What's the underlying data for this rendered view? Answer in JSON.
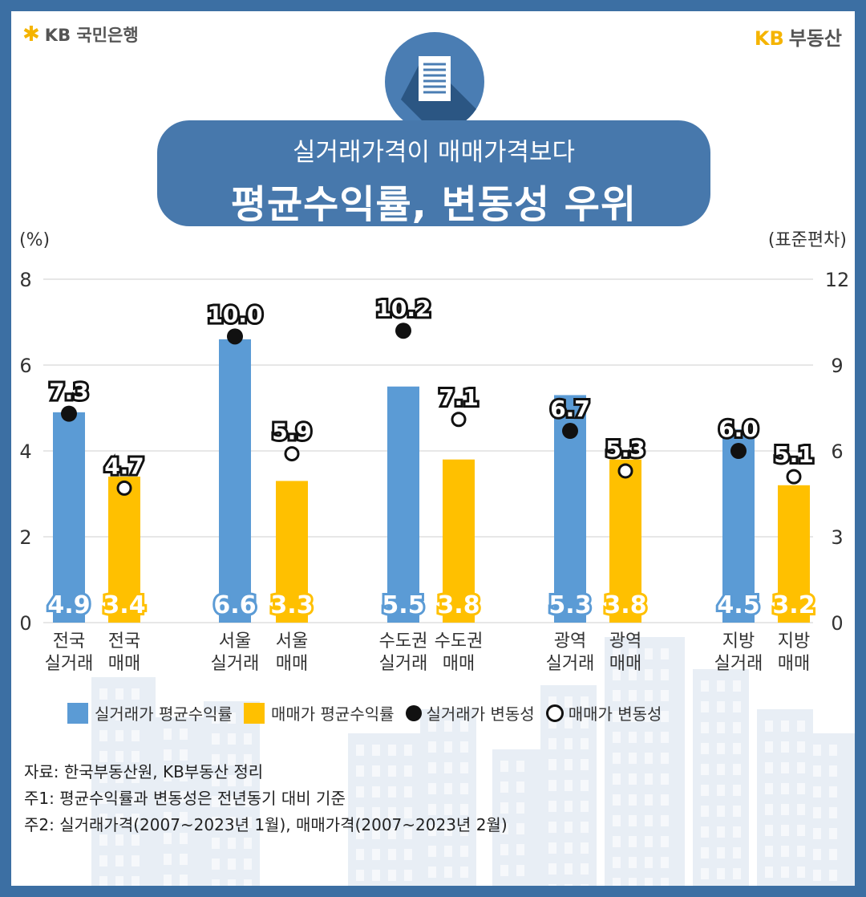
{
  "branding": {
    "left_logo": "KB 국민은행",
    "right_logo_kb": "KB",
    "right_logo_text": "부동산"
  },
  "icons": {
    "document": "document-icon",
    "star": "kb-star-icon"
  },
  "title": {
    "subtitle": "실거래가격이 매매가격보다",
    "main": "평균수익률, 변동성 우위"
  },
  "legend": {
    "blue": "실거래가 평균수익률",
    "yellow": "매매가 평균수익률",
    "black": "실거래가 변동성",
    "white": "매매가 변동성"
  },
  "notes": {
    "source": "자료: 한국부동산원, KB부동산 정리",
    "note1": "주1: 평균수익률과 변동성은 전년동기 대비 기준",
    "note2": "주2: 실거래가격(2007~2023년 1월), 매매가격(2007~2023년 2월)"
  },
  "colors": {
    "blue": "#5b9bd5",
    "yellow": "#ffc000",
    "title_bg": "#4778ac",
    "frame": "#3c6fa3"
  },
  "chart_data": {
    "type": "bar",
    "left_axis_unit": "(%)",
    "right_axis_unit": "(표준편차)",
    "left_ylim": [
      0,
      8
    ],
    "left_ticks": [
      0,
      2,
      4,
      6,
      8
    ],
    "right_ylim": [
      0,
      12
    ],
    "right_ticks": [
      0,
      3,
      6,
      9,
      12
    ],
    "grid": true,
    "legend_position": "bottom",
    "groups": [
      {
        "real_label": [
          "전국",
          "실거래"
        ],
        "sale_label": [
          "전국",
          "매매"
        ],
        "real_return": 4.9,
        "sale_return": 3.4,
        "real_vol": 7.3,
        "sale_vol": 4.7
      },
      {
        "real_label": [
          "서울",
          "실거래"
        ],
        "sale_label": [
          "서울",
          "매매"
        ],
        "real_return": 6.6,
        "sale_return": 3.3,
        "real_vol": 10.0,
        "sale_vol": 5.9
      },
      {
        "real_label": [
          "수도권",
          "실거래"
        ],
        "sale_label": [
          "수도권",
          "매매"
        ],
        "real_return": 5.5,
        "sale_return": 3.8,
        "real_vol": 10.2,
        "sale_vol": 7.1
      },
      {
        "real_label": [
          "광역",
          "실거래"
        ],
        "sale_label": [
          "광역",
          "매매"
        ],
        "real_return": 5.3,
        "sale_return": 3.8,
        "real_vol": 6.7,
        "sale_vol": 5.3
      },
      {
        "real_label": [
          "지방",
          "실거래"
        ],
        "sale_label": [
          "지방",
          "매매"
        ],
        "real_return": 4.5,
        "sale_return": 3.2,
        "real_vol": 6.0,
        "sale_vol": 5.1
      }
    ]
  }
}
